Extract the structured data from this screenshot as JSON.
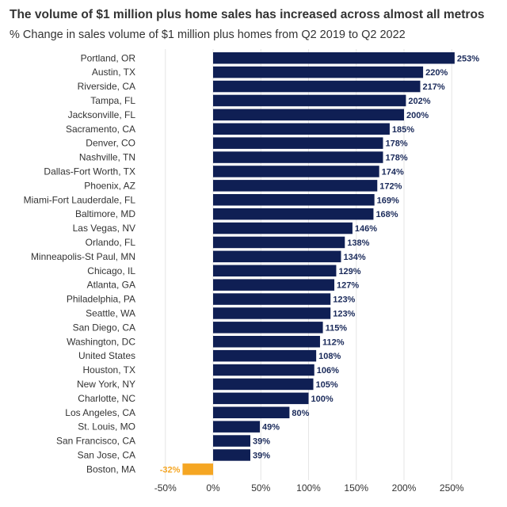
{
  "chart_data": {
    "type": "bar",
    "orientation": "horizontal",
    "title": "The volume of $1 million plus home sales has increased across almost all metros",
    "subtitle": "% Change in sales volume of $1 million plus homes from Q2 2019 to Q2 2022",
    "categories": [
      "Portland, OR",
      "Austin, TX",
      "Riverside, CA",
      "Tampa, FL",
      "Jacksonville, FL",
      "Sacramento, CA",
      "Denver, CO",
      "Nashville, TN",
      "Dallas-Fort Worth, TX",
      "Phoenix, AZ",
      "Miami-Fort Lauderdale, FL",
      "Baltimore, MD",
      "Las Vegas, NV",
      "Orlando, FL",
      "Minneapolis-St Paul, MN",
      "Chicago, IL",
      "Atlanta, GA",
      "Philadelphia, PA",
      "Seattle, WA",
      "San Diego, CA",
      "Washington, DC",
      "United States",
      "Houston, TX",
      "New York, NY",
      "Charlotte, NC",
      "Los Angeles, CA",
      "St. Louis, MO",
      "San Francisco, CA",
      "San Jose, CA",
      "Boston, MA"
    ],
    "values": [
      253,
      220,
      217,
      202,
      200,
      185,
      178,
      178,
      174,
      172,
      169,
      168,
      146,
      138,
      134,
      129,
      127,
      123,
      123,
      115,
      112,
      108,
      106,
      105,
      100,
      80,
      49,
      39,
      39,
      -32
    ],
    "value_labels": [
      "253%",
      "220%",
      "217%",
      "202%",
      "200%",
      "185%",
      "178%",
      "178%",
      "174%",
      "172%",
      "169%",
      "168%",
      "146%",
      "138%",
      "134%",
      "129%",
      "127%",
      "123%",
      "123%",
      "115%",
      "112%",
      "108%",
      "106%",
      "105%",
      "100%",
      "80%",
      "49%",
      "39%",
      "39%",
      "-32%"
    ],
    "xticks": [
      -50,
      0,
      50,
      100,
      150,
      200,
      250
    ],
    "xtick_labels": [
      "-50%",
      "0%",
      "50%",
      "100%",
      "150%",
      "200%",
      "250%"
    ],
    "xlim": [
      -50,
      280
    ],
    "xlabel": "",
    "ylabel": "",
    "grid": true,
    "colors": {
      "positive": "#0f1f54",
      "negative": "#f5a623",
      "positive_label": "#1a2a5a",
      "negative_label": "#f5a623",
      "grid": "#e6e6e6"
    }
  }
}
